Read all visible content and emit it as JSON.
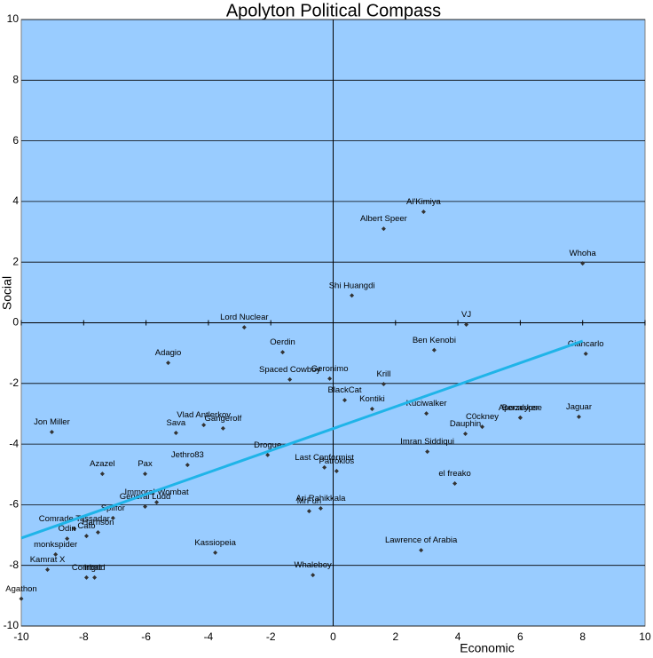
{
  "chart_data": {
    "type": "scatter",
    "title": "Apolyton Political Compass",
    "x_label": "Economic",
    "y_label": "Social",
    "labels": [
      "Al'Kimiya",
      "Albert Speer",
      "Whoha",
      "Shi Huangdi",
      "VJ",
      "Lord Nuclear",
      "Oerdin",
      "Ben Kenobi",
      "Giancarlo",
      "Adagio",
      "Spaced Cowboy",
      "Geronimo",
      "Krill",
      "BlackCat",
      "Kontiki",
      "Kuciwalker",
      "Apocalypse",
      "Berzerker",
      "Jaguar",
      "C0ckney",
      "Dauphin",
      "Vlad Antlerkov",
      "Sava",
      "Gangerolf",
      "Jon Miller",
      "Imran Siddiqui",
      "Drogue",
      "Jethro83",
      "Azazel",
      "Pax",
      "Last Conformist",
      "Patroklos",
      "el freako",
      "Immoral Wombat",
      "General Ludd",
      "Spiffor",
      "Ari Rahikkala",
      "MrFun",
      "Comrade Tassadar",
      "Harrison",
      "Cato",
      "Odin",
      "monkspider",
      "Kassiopeia",
      "Lawrence of Arabia",
      "Kamrat X",
      "Combat",
      "Ingrid",
      "Whaleboy",
      "Agathon"
    ],
    "x": [
      2.9,
      1.62,
      8.0,
      0.6,
      4.27,
      -2.85,
      -1.62,
      3.24,
      8.1,
      -5.29,
      -1.39,
      -0.11,
      1.62,
      0.37,
      1.25,
      2.99,
      6.0,
      6.0,
      7.88,
      4.78,
      4.24,
      -4.15,
      -5.04,
      -3.53,
      -9.02,
      3.02,
      -2.1,
      -4.67,
      -7.4,
      -6.03,
      -0.28,
      0.11,
      3.9,
      -5.66,
      -6.03,
      -7.06,
      -0.4,
      -0.77,
      -8.3,
      -7.54,
      -7.91,
      -8.53,
      -8.9,
      -3.78,
      2.82,
      -9.16,
      -7.91,
      -7.65,
      -0.65,
      -10.0
    ],
    "y": [
      3.66,
      3.1,
      1.96,
      0.9,
      -0.06,
      -0.15,
      -0.97,
      -0.9,
      -1.02,
      -1.32,
      -1.87,
      -1.84,
      -2.02,
      -2.55,
      -2.84,
      -2.99,
      -3.13,
      -3.13,
      -3.1,
      -3.43,
      -3.66,
      -3.37,
      -3.63,
      -3.48,
      -3.6,
      -4.25,
      -4.36,
      -4.69,
      -4.98,
      -4.98,
      -4.77,
      -4.89,
      -5.3,
      -5.92,
      -6.06,
      -6.44,
      -6.12,
      -6.21,
      -6.79,
      -6.91,
      -7.03,
      -7.12,
      -7.64,
      -7.58,
      -7.5,
      -8.14,
      -8.4,
      -8.4,
      -8.32,
      -9.1
    ],
    "color": "#333333",
    "trendline": {
      "x": [
        -10,
        8
      ],
      "y": [
        -7.1,
        -0.6
      ],
      "color": "#1fb4e8"
    },
    "xlim": [
      -10,
      10
    ],
    "ylim": [
      -10,
      10
    ],
    "xticks": [
      -10,
      -8,
      -6,
      -4,
      -2,
      0,
      2,
      4,
      6,
      8,
      10
    ],
    "yticks": [
      -10,
      -8,
      -6,
      -4,
      -2,
      0,
      2,
      4,
      6,
      8,
      10
    ],
    "grid": true,
    "background": "#99ccff"
  }
}
